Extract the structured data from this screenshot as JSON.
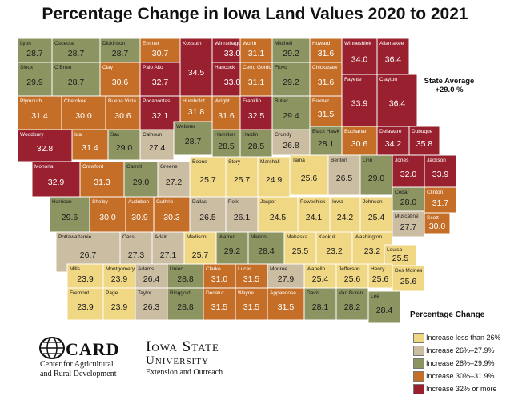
{
  "title": "Percentage Change in Iowa Land Values 2020 to 2021",
  "state_average": {
    "label": "State Average",
    "value": "+29.0 %"
  },
  "colors": {
    "c1": "#f0d784",
    "c2": "#cbbda2",
    "c3": "#8c9562",
    "c4": "#c46e27",
    "c5": "#99212f",
    "border": "#ffffff",
    "outline": "#555555"
  },
  "legend": {
    "title": "Percentage Change",
    "items": [
      {
        "label": "Increase less than 26%",
        "color": "#f0d784"
      },
      {
        "label": "Increase 26%–27.9%",
        "color": "#cbbda2"
      },
      {
        "label": "Increase 28%–29.9%",
        "color": "#8c9562"
      },
      {
        "label": "Increase 30%–31.9%",
        "color": "#c46e27"
      },
      {
        "label": "Increase 32% or more",
        "color": "#99212f"
      }
    ]
  },
  "logos": {
    "card_name": "CARD",
    "card_line1": "Center for Agricultural",
    "card_line2": "and Rural Development",
    "isu_line1": "Iowa State",
    "isu_line2": "University",
    "isu_line3": "Extension and Outreach"
  },
  "counties": [
    {
      "name": "Lyon",
      "value": "28.7",
      "cat": 3
    },
    {
      "name": "Osceola",
      "value": "28.7",
      "cat": 3
    },
    {
      "name": "Dickinson",
      "value": "28.7",
      "cat": 3
    },
    {
      "name": "Emmet",
      "value": "30.7",
      "cat": 4
    },
    {
      "name": "Kossuth",
      "value": "34.5",
      "cat": 5
    },
    {
      "name": "Winnebago",
      "value": "33.0",
      "cat": 5
    },
    {
      "name": "Worth",
      "value": "31.1",
      "cat": 4
    },
    {
      "name": "Mitchell",
      "value": "29.2",
      "cat": 3
    },
    {
      "name": "Howard",
      "value": "31.6",
      "cat": 4
    },
    {
      "name": "Winneshiek",
      "value": "34.0",
      "cat": 5
    },
    {
      "name": "Allamakee",
      "value": "36.4",
      "cat": 5
    },
    {
      "name": "Sioux",
      "value": "29.9",
      "cat": 3
    },
    {
      "name": "O'Brien",
      "value": "28.7",
      "cat": 3
    },
    {
      "name": "Clay",
      "value": "30.6",
      "cat": 4
    },
    {
      "name": "Palo Alto",
      "value": "32.7",
      "cat": 5
    },
    {
      "name": "Hancock",
      "value": "33.0",
      "cat": 5
    },
    {
      "name": "Cerro Gordo",
      "value": "31.1",
      "cat": 4
    },
    {
      "name": "Floyd",
      "value": "29.2",
      "cat": 3
    },
    {
      "name": "Chickasaw",
      "value": "31.6",
      "cat": 4
    },
    {
      "name": "Fayette",
      "value": "33.9",
      "cat": 5
    },
    {
      "name": "Clayton",
      "value": "36.4",
      "cat": 5
    },
    {
      "name": "Plymouth",
      "value": "31.4",
      "cat": 4
    },
    {
      "name": "Cherokee",
      "value": "30.0",
      "cat": 4
    },
    {
      "name": "Buena Vista",
      "value": "30.6",
      "cat": 4
    },
    {
      "name": "Pocahontas",
      "value": "32.1",
      "cat": 5
    },
    {
      "name": "Humboldt",
      "value": "31.8",
      "cat": 4
    },
    {
      "name": "Wright",
      "value": "31.6",
      "cat": 4
    },
    {
      "name": "Franklin",
      "value": "32.5",
      "cat": 5
    },
    {
      "name": "Butler",
      "value": "29.4",
      "cat": 3
    },
    {
      "name": "Bremer",
      "value": "31.5",
      "cat": 4
    },
    {
      "name": "Black Hawk",
      "value": "28.1",
      "cat": 3
    },
    {
      "name": "Buchanan",
      "value": "30.6",
      "cat": 4
    },
    {
      "name": "Delaware",
      "value": "34.2",
      "cat": 5
    },
    {
      "name": "Dubuque",
      "value": "35.8",
      "cat": 5
    },
    {
      "name": "Woodbury",
      "value": "32.8",
      "cat": 5
    },
    {
      "name": "Ida",
      "value": "31.4",
      "cat": 4
    },
    {
      "name": "Sac",
      "value": "29.0",
      "cat": 3
    },
    {
      "name": "Calhoun",
      "value": "27.4",
      "cat": 2
    },
    {
      "name": "Webster",
      "value": "28.7",
      "cat": 3
    },
    {
      "name": "Hamilton",
      "value": "28.5",
      "cat": 3
    },
    {
      "name": "Hardin",
      "value": "28.5",
      "cat": 3
    },
    {
      "name": "Grundy",
      "value": "26.8",
      "cat": 2
    },
    {
      "name": "Tama",
      "value": "25.6",
      "cat": 1
    },
    {
      "name": "Benton",
      "value": "26.5",
      "cat": 2
    },
    {
      "name": "Linn",
      "value": "29.0",
      "cat": 3
    },
    {
      "name": "Jones",
      "value": "32.0",
      "cat": 5
    },
    {
      "name": "Jackson",
      "value": "33.9",
      "cat": 5
    },
    {
      "name": "Monona",
      "value": "32.9",
      "cat": 5
    },
    {
      "name": "Crawford",
      "value": "31.3",
      "cat": 4
    },
    {
      "name": "Carroll",
      "value": "29.0",
      "cat": 3
    },
    {
      "name": "Greene",
      "value": "27.2",
      "cat": 2
    },
    {
      "name": "Boone",
      "value": "25.7",
      "cat": 1
    },
    {
      "name": "Story",
      "value": "25.7",
      "cat": 1
    },
    {
      "name": "Marshall",
      "value": "24.9",
      "cat": 1
    },
    {
      "name": "Clinton",
      "value": "31.7",
      "cat": 4
    },
    {
      "name": "Cedar",
      "value": "28.0",
      "cat": 3
    },
    {
      "name": "Harrison",
      "value": "29.6",
      "cat": 3
    },
    {
      "name": "Shelby",
      "value": "30.0",
      "cat": 4
    },
    {
      "name": "Audubon",
      "value": "30.9",
      "cat": 4
    },
    {
      "name": "Guthrie",
      "value": "30.3",
      "cat": 4
    },
    {
      "name": "Dallas",
      "value": "26.5",
      "cat": 2
    },
    {
      "name": "Polk",
      "value": "26.1",
      "cat": 2
    },
    {
      "name": "Jasper",
      "value": "24.5",
      "cat": 1
    },
    {
      "name": "Poweshiek",
      "value": "24.1",
      "cat": 1
    },
    {
      "name": "Iowa",
      "value": "24.2",
      "cat": 1
    },
    {
      "name": "Johnson",
      "value": "25.4",
      "cat": 1
    },
    {
      "name": "Scott",
      "value": "30.0",
      "cat": 4
    },
    {
      "name": "Muscatine",
      "value": "27.7",
      "cat": 2
    },
    {
      "name": "Pottawattamie",
      "value": "26.7",
      "cat": 2
    },
    {
      "name": "Cass",
      "value": "27.3",
      "cat": 2
    },
    {
      "name": "Adair",
      "value": "27.1",
      "cat": 2
    },
    {
      "name": "Madison",
      "value": "25.7",
      "cat": 1
    },
    {
      "name": "Warren",
      "value": "29.2",
      "cat": 3
    },
    {
      "name": "Marion",
      "value": "28.4",
      "cat": 3
    },
    {
      "name": "Mahaska",
      "value": "25.5",
      "cat": 1
    },
    {
      "name": "Keokuk",
      "value": "23.2",
      "cat": 1
    },
    {
      "name": "Washington",
      "value": "23.2",
      "cat": 1
    },
    {
      "name": "Louisa",
      "value": "25.5",
      "cat": 1
    },
    {
      "name": "Mills",
      "value": "23.9",
      "cat": 1
    },
    {
      "name": "Montgomery",
      "value": "23.9",
      "cat": 1
    },
    {
      "name": "Adams",
      "value": "26.4",
      "cat": 2
    },
    {
      "name": "Union",
      "value": "28.8",
      "cat": 3
    },
    {
      "name": "Clarke",
      "value": "31.0",
      "cat": 4
    },
    {
      "name": "Lucas",
      "value": "31.5",
      "cat": 4
    },
    {
      "name": "Monroe",
      "value": "27.9",
      "cat": 2
    },
    {
      "name": "Wapello",
      "value": "25.4",
      "cat": 1
    },
    {
      "name": "Jefferson",
      "value": "25.6",
      "cat": 1
    },
    {
      "name": "Henry",
      "value": "25.6",
      "cat": 1
    },
    {
      "name": "Des Moines",
      "value": "25.6",
      "cat": 1
    },
    {
      "name": "Fremont",
      "value": "23.9",
      "cat": 1
    },
    {
      "name": "Page",
      "value": "23.9",
      "cat": 1
    },
    {
      "name": "Taylor",
      "value": "26.3",
      "cat": 2
    },
    {
      "name": "Ringgold",
      "value": "28.8",
      "cat": 3
    },
    {
      "name": "Decatur",
      "value": "31.5",
      "cat": 4
    },
    {
      "name": "Wayne",
      "value": "31.5",
      "cat": 4
    },
    {
      "name": "Appanoose",
      "value": "31.5",
      "cat": 4
    },
    {
      "name": "Davis",
      "value": "28.1",
      "cat": 3
    },
    {
      "name": "Van Buren",
      "value": "28.2",
      "cat": 3
    },
    {
      "name": "Lee",
      "value": "28.4",
      "cat": 3
    }
  ]
}
